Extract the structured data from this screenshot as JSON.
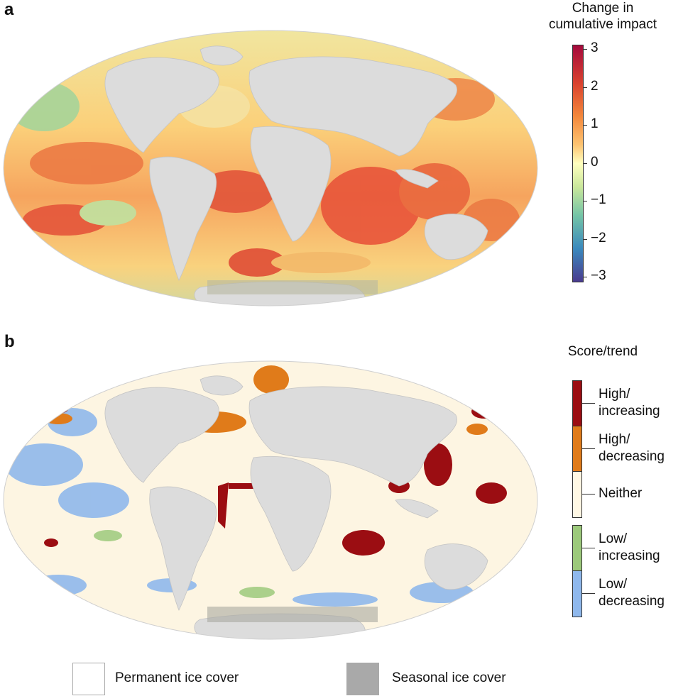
{
  "panel_a": {
    "label": "a",
    "colorbar": {
      "title_line1": "Change in",
      "title_line2": "cumulative impact",
      "ticks": [
        "3",
        "2",
        "1",
        "0",
        "−1",
        "−2",
        "−3"
      ],
      "range": [
        -3,
        3
      ],
      "colors": {
        "high": "#a40a3d",
        "mid": "#ffffbf",
        "low": "#4a3b8f"
      }
    }
  },
  "panel_b": {
    "label": "b",
    "legend_title": "Score/trend",
    "categories": [
      {
        "line1": "High/",
        "line2": "increasing",
        "color": "#9b0d12"
      },
      {
        "line1": "High/",
        "line2": "decreasing",
        "color": "#e07b1a"
      },
      {
        "line1": "Neither",
        "line2": "",
        "color": "#fff8e5"
      },
      {
        "line1": "Low/",
        "line2": "increasing",
        "color": "#9cc97b"
      },
      {
        "line1": "Low/",
        "line2": "decreasing",
        "color": "#8fb8ec"
      }
    ]
  },
  "ice_legend": {
    "permanent": "Permanent ice cover",
    "seasonal": "Seasonal ice cover",
    "permanent_color": "#ffffff",
    "seasonal_color": "#a9a9a9"
  },
  "colors": {
    "land": "#dcdcdc",
    "ocean_a": "#f8e08a",
    "ocean_b": "#fdf5e2"
  }
}
